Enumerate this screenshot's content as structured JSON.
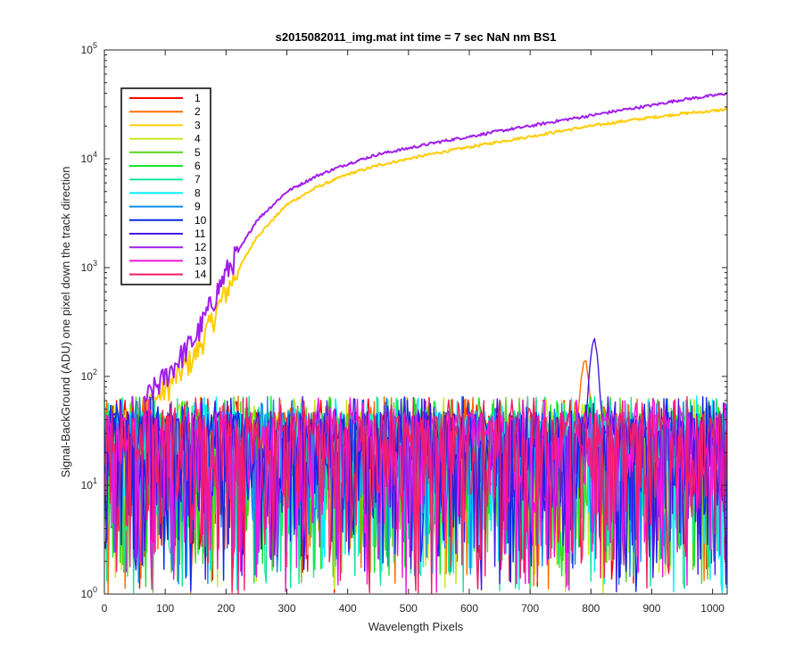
{
  "chart_data": {
    "type": "line",
    "title": "s2015082011_img.mat int time = 7 sec  NaN nm BS1",
    "xlabel": "Wavelength Pixels",
    "ylabel": "Signal-BackGround (ADU) one pixel down the track direction",
    "xlim": [
      0,
      1024
    ],
    "ylim": [
      1,
      100000
    ],
    "yscale": "log",
    "grid": false,
    "legend_position": "top-left",
    "x_ticks": [
      "0",
      "100",
      "200",
      "300",
      "400",
      "500",
      "600",
      "700",
      "800",
      "900",
      "1000"
    ],
    "y_ticks": [
      {
        "base": "10",
        "exp": "0"
      },
      {
        "base": "10",
        "exp": "1"
      },
      {
        "base": "10",
        "exp": "2"
      },
      {
        "base": "10",
        "exp": "3"
      },
      {
        "base": "10",
        "exp": "4"
      },
      {
        "base": "10",
        "exp": "5"
      }
    ],
    "noise_band": {
      "min": 1,
      "max": 60,
      "typical": 25
    },
    "series": [
      {
        "name": "1",
        "color": "#ff0000",
        "kind": "noise"
      },
      {
        "name": "2",
        "color": "#ff6a00",
        "kind": "noise",
        "peak": {
          "x": 790,
          "y": 150
        }
      },
      {
        "name": "3",
        "color": "#ffcc00",
        "kind": "signal",
        "points": [
          [
            65,
            50
          ],
          [
            100,
            75
          ],
          [
            150,
            160
          ],
          [
            200,
            600
          ],
          [
            250,
            1900
          ],
          [
            300,
            3800
          ],
          [
            350,
            5500
          ],
          [
            400,
            7200
          ],
          [
            450,
            8700
          ],
          [
            500,
            10000
          ],
          [
            550,
            11400
          ],
          [
            600,
            12800
          ],
          [
            650,
            14400
          ],
          [
            700,
            16000
          ],
          [
            750,
            18000
          ],
          [
            800,
            20000
          ],
          [
            850,
            22000
          ],
          [
            900,
            24000
          ],
          [
            950,
            26000
          ],
          [
            1000,
            27500
          ],
          [
            1024,
            28500
          ]
        ]
      },
      {
        "name": "4",
        "color": "#c8e61e",
        "kind": "noise"
      },
      {
        "name": "5",
        "color": "#5ad21e",
        "kind": "noise"
      },
      {
        "name": "6",
        "color": "#14e628",
        "kind": "noise"
      },
      {
        "name": "7",
        "color": "#14e69b",
        "kind": "noise"
      },
      {
        "name": "8",
        "color": "#00f0ff",
        "kind": "noise"
      },
      {
        "name": "9",
        "color": "#0f8cf0",
        "kind": "noise"
      },
      {
        "name": "10",
        "color": "#0a28e6",
        "kind": "noise"
      },
      {
        "name": "11",
        "color": "#4614e6",
        "kind": "noise",
        "peak": {
          "x": 805,
          "y": 240
        }
      },
      {
        "name": "12",
        "color": "#a01eeb",
        "kind": "signal",
        "points": [
          [
            65,
            60
          ],
          [
            100,
            100
          ],
          [
            150,
            230
          ],
          [
            200,
            900
          ],
          [
            250,
            2700
          ],
          [
            300,
            5000
          ],
          [
            350,
            7000
          ],
          [
            400,
            9000
          ],
          [
            450,
            11000
          ],
          [
            500,
            12500
          ],
          [
            550,
            14300
          ],
          [
            600,
            16000
          ],
          [
            650,
            18000
          ],
          [
            700,
            20000
          ],
          [
            750,
            22500
          ],
          [
            800,
            25000
          ],
          [
            850,
            28000
          ],
          [
            900,
            31000
          ],
          [
            950,
            35000
          ],
          [
            1000,
            38000
          ],
          [
            1024,
            40000
          ]
        ]
      },
      {
        "name": "13",
        "color": "#f014dc",
        "kind": "noise"
      },
      {
        "name": "14",
        "color": "#f01e64",
        "kind": "noise"
      }
    ]
  }
}
